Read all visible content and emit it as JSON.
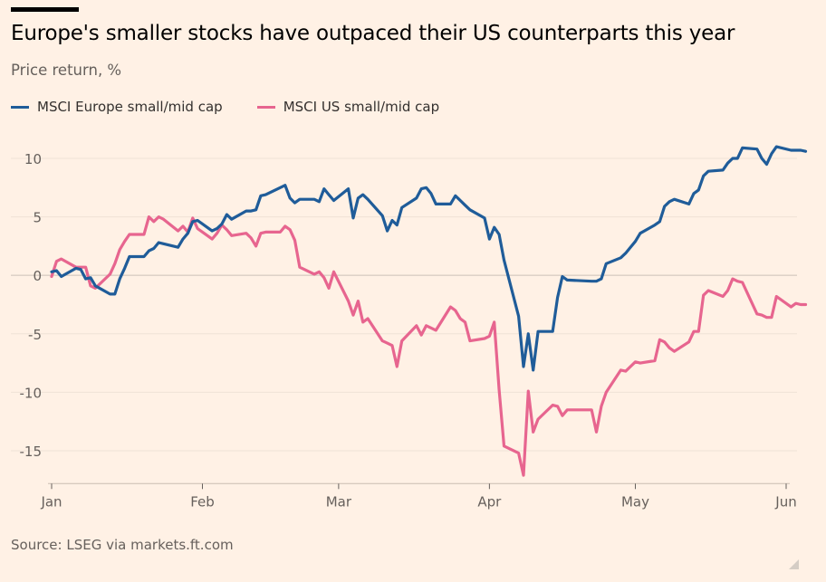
{
  "title": "Europe's smaller stocks have outpaced their US counterparts this year",
  "subtitle": "Price return, %",
  "source": "Source: LSEG via markets.ft.com",
  "legend": [
    {
      "label": "MSCI Europe small/mid cap",
      "color": "#1f5c99"
    },
    {
      "label": "MSCI US small/mid cap",
      "color": "#e7658f"
    }
  ],
  "chart_data": {
    "type": "line",
    "title": "Europe's smaller stocks have outpaced their US counterparts this year",
    "subtitle": "Price return, %",
    "ylabel": "Price return, %",
    "xlabel": "",
    "ylim": [
      -17.5,
      12
    ],
    "y_ticks": [
      10,
      5,
      0,
      -5,
      -10,
      -15
    ],
    "y_tick_labels": [
      "10",
      "5",
      "0",
      "-5",
      "-10",
      "-15"
    ],
    "x_ticks": [
      {
        "label": "Jan",
        "date": "2025-01-01"
      },
      {
        "label": "Feb",
        "date": "2025-02-01"
      },
      {
        "label": "Mar",
        "date": "2025-03-01"
      },
      {
        "label": "Apr",
        "date": "2025-04-01"
      },
      {
        "label": "May",
        "date": "2025-05-01"
      },
      {
        "label": "Jun",
        "date": "2025-06-01"
      }
    ],
    "grid": true,
    "legend_position": "top-left",
    "series": [
      {
        "name": "MSCI Europe small/mid cap",
        "color": "#1f5c99",
        "points": [
          [
            "2025-01-01",
            0.3
          ],
          [
            "2025-01-02",
            0.4
          ],
          [
            "2025-01-03",
            -0.1
          ],
          [
            "2025-01-06",
            0.6
          ],
          [
            "2025-01-07",
            0.5
          ],
          [
            "2025-01-08",
            -0.3
          ],
          [
            "2025-01-09",
            -0.2
          ],
          [
            "2025-01-10",
            -0.9
          ],
          [
            "2025-01-13",
            -1.6
          ],
          [
            "2025-01-14",
            -1.6
          ],
          [
            "2025-01-15",
            -0.3
          ],
          [
            "2025-01-16",
            0.6
          ],
          [
            "2025-01-17",
            1.6
          ],
          [
            "2025-01-20",
            1.6
          ],
          [
            "2025-01-21",
            2.1
          ],
          [
            "2025-01-22",
            2.3
          ],
          [
            "2025-01-23",
            2.8
          ],
          [
            "2025-01-24",
            2.7
          ],
          [
            "2025-01-27",
            2.4
          ],
          [
            "2025-01-28",
            3.1
          ],
          [
            "2025-01-29",
            3.6
          ],
          [
            "2025-01-30",
            4.6
          ],
          [
            "2025-01-31",
            4.7
          ],
          [
            "2025-02-03",
            3.8
          ],
          [
            "2025-02-04",
            4.0
          ],
          [
            "2025-02-05",
            4.4
          ],
          [
            "2025-02-06",
            5.2
          ],
          [
            "2025-02-07",
            4.8
          ],
          [
            "2025-02-10",
            5.5
          ],
          [
            "2025-02-11",
            5.5
          ],
          [
            "2025-02-12",
            5.6
          ],
          [
            "2025-02-13",
            6.8
          ],
          [
            "2025-02-14",
            6.9
          ],
          [
            "2025-02-17",
            7.5
          ],
          [
            "2025-02-18",
            7.7
          ],
          [
            "2025-02-19",
            6.6
          ],
          [
            "2025-02-20",
            6.2
          ],
          [
            "2025-02-21",
            6.5
          ],
          [
            "2025-02-24",
            6.5
          ],
          [
            "2025-02-25",
            6.3
          ],
          [
            "2025-02-26",
            7.4
          ],
          [
            "2025-02-27",
            6.9
          ],
          [
            "2025-02-28",
            6.4
          ],
          [
            "2025-03-03",
            7.4
          ],
          [
            "2025-03-04",
            4.9
          ],
          [
            "2025-03-05",
            6.6
          ],
          [
            "2025-03-06",
            6.9
          ],
          [
            "2025-03-07",
            6.5
          ],
          [
            "2025-03-10",
            5.1
          ],
          [
            "2025-03-11",
            3.8
          ],
          [
            "2025-03-12",
            4.7
          ],
          [
            "2025-03-13",
            4.3
          ],
          [
            "2025-03-14",
            5.8
          ],
          [
            "2025-03-17",
            6.6
          ],
          [
            "2025-03-18",
            7.4
          ],
          [
            "2025-03-19",
            7.5
          ],
          [
            "2025-03-20",
            7.0
          ],
          [
            "2025-03-21",
            6.1
          ],
          [
            "2025-03-24",
            6.1
          ],
          [
            "2025-03-25",
            6.8
          ],
          [
            "2025-03-26",
            6.4
          ],
          [
            "2025-03-27",
            6.0
          ],
          [
            "2025-03-28",
            5.6
          ],
          [
            "2025-03-31",
            4.9
          ],
          [
            "2025-04-01",
            3.1
          ],
          [
            "2025-04-02",
            4.1
          ],
          [
            "2025-04-03",
            3.5
          ],
          [
            "2025-04-04",
            1.3
          ],
          [
            "2025-04-07",
            -3.5
          ],
          [
            "2025-04-08",
            -7.8
          ],
          [
            "2025-04-09",
            -5.0
          ],
          [
            "2025-04-10",
            -8.1
          ],
          [
            "2025-04-11",
            -4.8
          ],
          [
            "2025-04-14",
            -4.8
          ],
          [
            "2025-04-15",
            -1.9
          ],
          [
            "2025-04-16",
            -0.1
          ],
          [
            "2025-04-17",
            -0.4
          ],
          [
            "2025-04-22",
            -0.5
          ],
          [
            "2025-04-23",
            -0.5
          ],
          [
            "2025-04-24",
            -0.3
          ],
          [
            "2025-04-25",
            1.0
          ],
          [
            "2025-04-28",
            1.5
          ],
          [
            "2025-04-29",
            1.9
          ],
          [
            "2025-04-30",
            2.4
          ],
          [
            "2025-05-01",
            2.9
          ],
          [
            "2025-05-02",
            3.6
          ],
          [
            "2025-05-05",
            4.3
          ],
          [
            "2025-05-06",
            4.6
          ],
          [
            "2025-05-07",
            5.9
          ],
          [
            "2025-05-08",
            6.3
          ],
          [
            "2025-05-09",
            6.5
          ],
          [
            "2025-05-12",
            6.1
          ],
          [
            "2025-05-13",
            7.0
          ],
          [
            "2025-05-14",
            7.3
          ],
          [
            "2025-05-15",
            8.5
          ],
          [
            "2025-05-16",
            8.9
          ],
          [
            "2025-05-19",
            9.0
          ],
          [
            "2025-05-20",
            9.6
          ],
          [
            "2025-05-21",
            10.0
          ],
          [
            "2025-05-22",
            10.0
          ],
          [
            "2025-05-23",
            10.9
          ],
          [
            "2025-05-26",
            10.8
          ],
          [
            "2025-05-27",
            10.0
          ],
          [
            "2025-05-28",
            9.5
          ],
          [
            "2025-05-29",
            10.4
          ],
          [
            "2025-05-30",
            11.0
          ],
          [
            "2025-06-02",
            10.7
          ],
          [
            "2025-06-03",
            10.7
          ],
          [
            "2025-06-04",
            10.7
          ],
          [
            "2025-06-05",
            10.6
          ]
        ]
      },
      {
        "name": "MSCI US small/mid cap",
        "color": "#e7658f",
        "points": [
          [
            "2025-01-01",
            -0.1
          ],
          [
            "2025-01-02",
            1.2
          ],
          [
            "2025-01-03",
            1.4
          ],
          [
            "2025-01-06",
            0.7
          ],
          [
            "2025-01-07",
            0.7
          ],
          [
            "2025-01-08",
            0.7
          ],
          [
            "2025-01-09",
            -0.9
          ],
          [
            "2025-01-10",
            -1.1
          ],
          [
            "2025-01-13",
            0.1
          ],
          [
            "2025-01-14",
            1.0
          ],
          [
            "2025-01-15",
            2.2
          ],
          [
            "2025-01-16",
            2.9
          ],
          [
            "2025-01-17",
            3.5
          ],
          [
            "2025-01-20",
            3.5
          ],
          [
            "2025-01-21",
            5.0
          ],
          [
            "2025-01-22",
            4.6
          ],
          [
            "2025-01-23",
            5.0
          ],
          [
            "2025-01-24",
            4.8
          ],
          [
            "2025-01-27",
            3.8
          ],
          [
            "2025-01-28",
            4.2
          ],
          [
            "2025-01-29",
            3.7
          ],
          [
            "2025-01-30",
            4.9
          ],
          [
            "2025-01-31",
            4.0
          ],
          [
            "2025-02-03",
            3.1
          ],
          [
            "2025-02-04",
            3.6
          ],
          [
            "2025-02-05",
            4.3
          ],
          [
            "2025-02-06",
            3.9
          ],
          [
            "2025-02-07",
            3.4
          ],
          [
            "2025-02-10",
            3.6
          ],
          [
            "2025-02-11",
            3.2
          ],
          [
            "2025-02-12",
            2.5
          ],
          [
            "2025-02-13",
            3.6
          ],
          [
            "2025-02-14",
            3.7
          ],
          [
            "2025-02-17",
            3.7
          ],
          [
            "2025-02-18",
            4.2
          ],
          [
            "2025-02-19",
            3.9
          ],
          [
            "2025-02-20",
            3.0
          ],
          [
            "2025-02-21",
            0.7
          ],
          [
            "2025-02-24",
            0.1
          ],
          [
            "2025-02-25",
            0.3
          ],
          [
            "2025-02-26",
            -0.2
          ],
          [
            "2025-02-27",
            -1.1
          ],
          [
            "2025-02-28",
            0.3
          ],
          [
            "2025-03-03",
            -2.2
          ],
          [
            "2025-03-04",
            -3.4
          ],
          [
            "2025-03-05",
            -2.2
          ],
          [
            "2025-03-06",
            -4.0
          ],
          [
            "2025-03-07",
            -3.7
          ],
          [
            "2025-03-10",
            -5.6
          ],
          [
            "2025-03-11",
            -5.8
          ],
          [
            "2025-03-12",
            -6.0
          ],
          [
            "2025-03-13",
            -7.8
          ],
          [
            "2025-03-14",
            -5.6
          ],
          [
            "2025-03-17",
            -4.3
          ],
          [
            "2025-03-18",
            -5.1
          ],
          [
            "2025-03-19",
            -4.3
          ],
          [
            "2025-03-20",
            -4.5
          ],
          [
            "2025-03-21",
            -4.7
          ],
          [
            "2025-03-24",
            -2.7
          ],
          [
            "2025-03-25",
            -3.0
          ],
          [
            "2025-03-26",
            -3.7
          ],
          [
            "2025-03-27",
            -4.0
          ],
          [
            "2025-03-28",
            -5.6
          ],
          [
            "2025-03-31",
            -5.4
          ],
          [
            "2025-04-01",
            -5.2
          ],
          [
            "2025-04-02",
            -4.0
          ],
          [
            "2025-04-03",
            -9.8
          ],
          [
            "2025-04-04",
            -14.6
          ],
          [
            "2025-04-07",
            -15.2
          ],
          [
            "2025-04-08",
            -17.1
          ],
          [
            "2025-04-09",
            -9.9
          ],
          [
            "2025-04-10",
            -13.4
          ],
          [
            "2025-04-11",
            -12.3
          ],
          [
            "2025-04-14",
            -11.1
          ],
          [
            "2025-04-15",
            -11.2
          ],
          [
            "2025-04-16",
            -12.0
          ],
          [
            "2025-04-17",
            -11.5
          ],
          [
            "2025-04-22",
            -11.5
          ],
          [
            "2025-04-23",
            -13.4
          ],
          [
            "2025-04-24",
            -11.2
          ],
          [
            "2025-04-25",
            -10.0
          ],
          [
            "2025-04-28",
            -8.1
          ],
          [
            "2025-04-29",
            -8.2
          ],
          [
            "2025-04-30",
            -7.8
          ],
          [
            "2025-05-01",
            -7.4
          ],
          [
            "2025-05-02",
            -7.5
          ],
          [
            "2025-05-05",
            -7.3
          ],
          [
            "2025-05-06",
            -5.5
          ],
          [
            "2025-05-07",
            -5.7
          ],
          [
            "2025-05-08",
            -6.2
          ],
          [
            "2025-05-09",
            -6.5
          ],
          [
            "2025-05-12",
            -5.7
          ],
          [
            "2025-05-13",
            -4.8
          ],
          [
            "2025-05-14",
            -4.8
          ],
          [
            "2025-05-15",
            -1.7
          ],
          [
            "2025-05-16",
            -1.3
          ],
          [
            "2025-05-19",
            -1.8
          ],
          [
            "2025-05-20",
            -1.3
          ],
          [
            "2025-05-21",
            -0.3
          ],
          [
            "2025-05-22",
            -0.5
          ],
          [
            "2025-05-23",
            -0.6
          ],
          [
            "2025-05-26",
            -3.3
          ],
          [
            "2025-05-27",
            -3.4
          ],
          [
            "2025-05-28",
            -3.6
          ],
          [
            "2025-05-29",
            -3.6
          ],
          [
            "2025-05-30",
            -1.8
          ],
          [
            "2025-06-02",
            -2.7
          ],
          [
            "2025-06-03",
            -2.4
          ],
          [
            "2025-06-04",
            -2.5
          ],
          [
            "2025-06-05",
            -2.5
          ]
        ]
      }
    ]
  }
}
